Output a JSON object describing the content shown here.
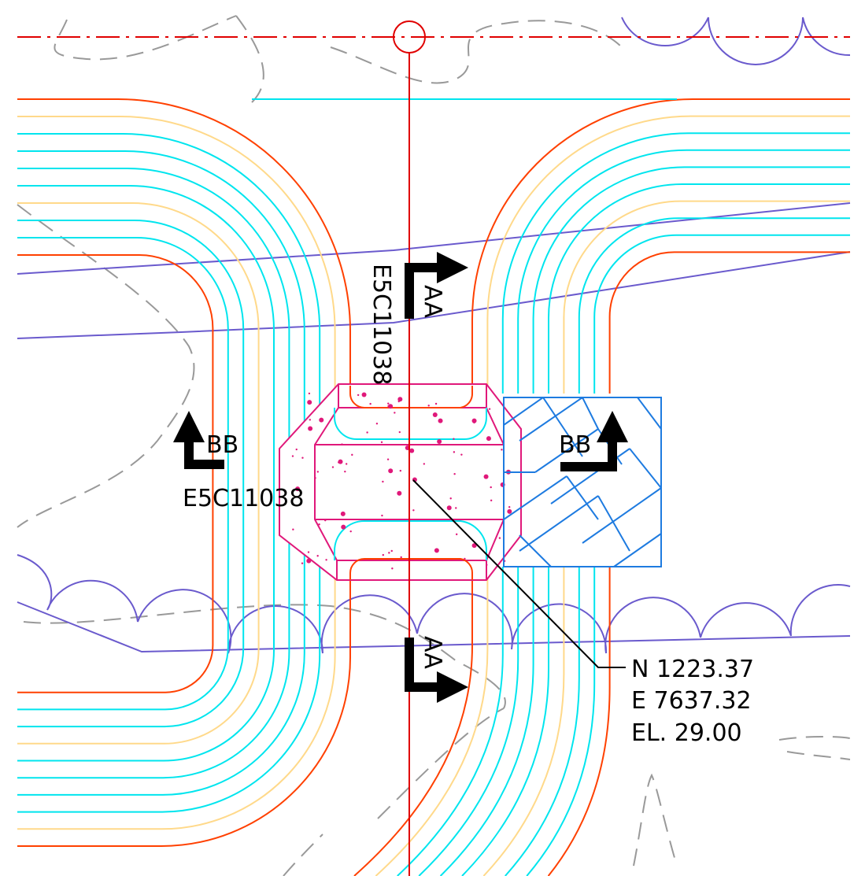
{
  "labels": {
    "aa_top": "AA",
    "aa_top_sheet": "E5C11038",
    "aa_bottom": "AA",
    "bb_left": "BB",
    "bb_left_sheet": "E5C11038",
    "bb_right": "BB"
  },
  "coordinates": {
    "northing": "N 1223.37",
    "easting": "E 7637.32",
    "elevation": "EL. 29.00"
  }
}
